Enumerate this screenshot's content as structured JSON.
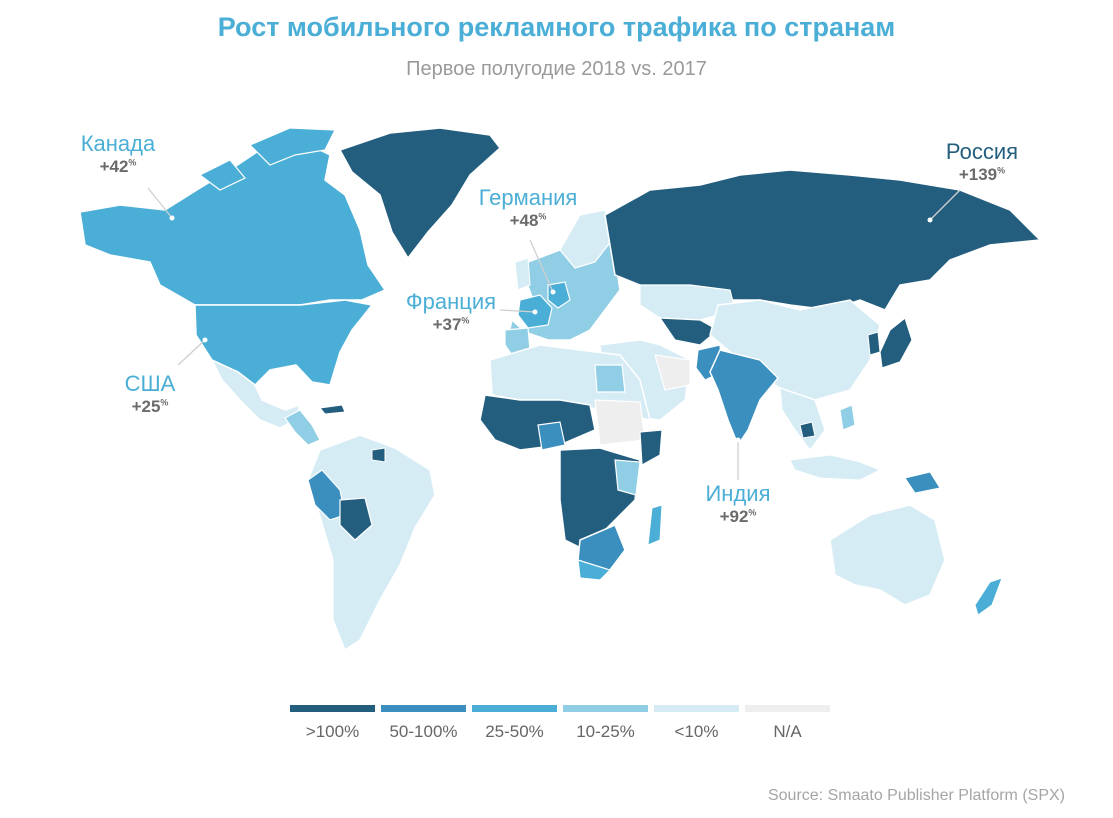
{
  "title": "Рост мобильного рекламного трафика по странам",
  "subtitle": "Первое полугодие 2018 vs. 2017",
  "colors": {
    "over_100": "#235e7e",
    "50_100": "#3a8fbf",
    "25_50": "#4aaed6",
    "10_25": "#8fcee5",
    "under_10": "#d5ecf5",
    "na": "#eeeeee"
  },
  "callouts": [
    {
      "country": "Канада",
      "value": "+42",
      "unit": "%"
    },
    {
      "country": "Германия",
      "value": "+48",
      "unit": "%"
    },
    {
      "country": "Франция",
      "value": "+37",
      "unit": "%"
    },
    {
      "country": "США",
      "value": "+25",
      "unit": "%"
    },
    {
      "country": "Россия",
      "value": "+139",
      "unit": "%"
    },
    {
      "country": "Индия",
      "value": "+92",
      "unit": "%"
    }
  ],
  "legend": [
    {
      "label": ">100%",
      "color": "#235e7e"
    },
    {
      "label": "50-100%",
      "color": "#3a8fbf"
    },
    {
      "label": "25-50%",
      "color": "#4aaed6"
    },
    {
      "label": "10-25%",
      "color": "#8fcee5"
    },
    {
      "label": "<10%",
      "color": "#d5ecf5"
    },
    {
      "label": "N/A",
      "color": "#eeeeee"
    }
  ],
  "source": "Source: Smaato Publisher Platform (SPX)"
}
